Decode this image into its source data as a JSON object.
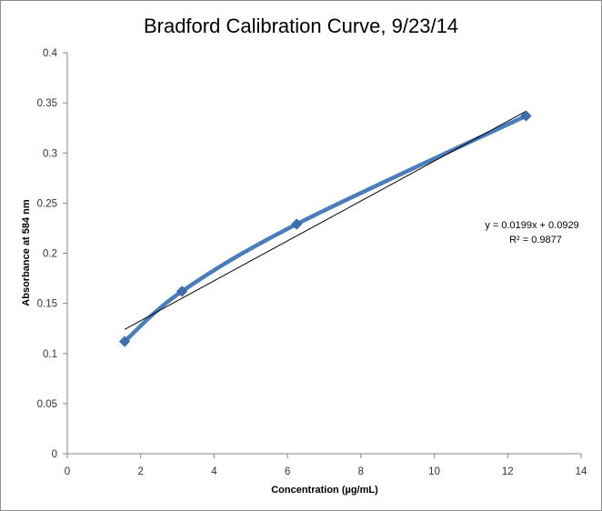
{
  "chart_data": {
    "type": "scatter",
    "title": "Bradford Calibration Curve, 9/23/14",
    "xlabel": "Concentration (µg/mL)",
    "ylabel": "Absorbance  at 584 nm",
    "xlim": [
      0,
      14
    ],
    "ylim": [
      0,
      0.4
    ],
    "x_ticks": [
      "0",
      "2",
      "4",
      "6",
      "8",
      "10",
      "12",
      "14"
    ],
    "y_ticks": [
      "0",
      "0.05",
      "0.1",
      "0.15",
      "0.2",
      "0.25",
      "0.3",
      "0.35",
      "0.4"
    ],
    "grid": false,
    "legend": "none",
    "series": [
      {
        "marker": "diamond",
        "line": "smooth",
        "color": "#4a7ebb",
        "x": [
          1.5625,
          3.125,
          6.25,
          12.5
        ],
        "y": [
          0.112,
          0.162,
          0.229,
          0.337
        ]
      }
    ],
    "trendline": {
      "type": "linear",
      "slope": 0.0199,
      "intercept": 0.0929,
      "x_range": [
        1.5625,
        12.5
      ],
      "color": "#000000",
      "equation": "y = 0.0199x + 0.0929",
      "r_squared_label": "R² = 0.9877"
    }
  }
}
